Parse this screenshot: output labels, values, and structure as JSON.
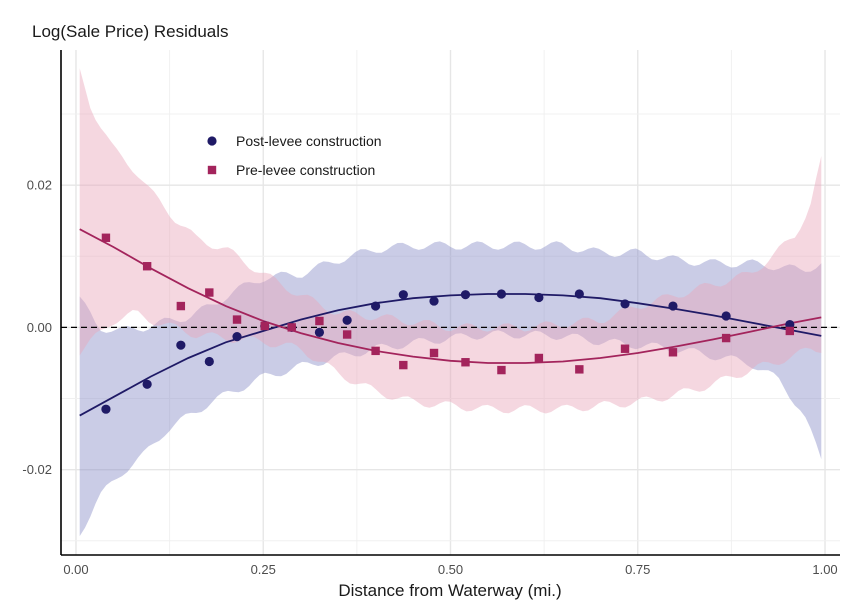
{
  "chart_data": {
    "type": "scatter",
    "ylabel": "Log(Sale Price) Residuals",
    "xlabel": "Distance from Waterway (mi.)",
    "xlim": [
      -0.02,
      1.02
    ],
    "ylim": [
      -0.032,
      0.039
    ],
    "x_ticks": [
      0.0,
      0.25,
      0.5,
      0.75,
      1.0
    ],
    "x_tick_labels": [
      "0.00",
      "0.25",
      "0.50",
      "0.75",
      "1.00"
    ],
    "y_ticks": [
      -0.02,
      0.0,
      0.02
    ],
    "y_tick_labels": [
      "-0.02",
      "0.00",
      "0.02"
    ],
    "reference_line": {
      "y": 0,
      "style": "dashed"
    },
    "grid": true,
    "legend": {
      "placement": "top-left"
    },
    "series": [
      {
        "name": "Post-levee construction",
        "marker": "circle",
        "color": "#1f1a66",
        "band_color": "#8a8ec8",
        "points": [
          [
            0.04,
            -0.0115
          ],
          [
            0.095,
            -0.008
          ],
          [
            0.14,
            -0.0025
          ],
          [
            0.178,
            -0.0048
          ],
          [
            0.215,
            -0.0013
          ],
          [
            0.252,
            0.0002
          ],
          [
            0.288,
            0.0
          ],
          [
            0.325,
            -0.0007
          ],
          [
            0.362,
            0.001
          ],
          [
            0.4,
            0.003
          ],
          [
            0.437,
            0.0046
          ],
          [
            0.478,
            0.0037
          ],
          [
            0.52,
            0.0046
          ],
          [
            0.568,
            0.0047
          ],
          [
            0.618,
            0.0042
          ],
          [
            0.672,
            0.0047
          ],
          [
            0.733,
            0.0033
          ],
          [
            0.797,
            0.003
          ],
          [
            0.868,
            0.0016
          ],
          [
            0.953,
            0.0004
          ]
        ],
        "fit": [
          [
            0.005,
            -0.0124
          ],
          [
            0.05,
            -0.0098
          ],
          [
            0.1,
            -0.0069
          ],
          [
            0.15,
            -0.0043
          ],
          [
            0.2,
            -0.0021
          ],
          [
            0.25,
            -0.0005
          ],
          [
            0.3,
            0.0011
          ],
          [
            0.35,
            0.0024
          ],
          [
            0.4,
            0.0034
          ],
          [
            0.45,
            0.0041
          ],
          [
            0.5,
            0.0045
          ],
          [
            0.55,
            0.0047
          ],
          [
            0.6,
            0.0047
          ],
          [
            0.65,
            0.0045
          ],
          [
            0.7,
            0.0041
          ],
          [
            0.75,
            0.0034
          ],
          [
            0.8,
            0.0026
          ],
          [
            0.85,
            0.0017
          ],
          [
            0.9,
            0.0007
          ],
          [
            0.95,
            -0.0003
          ],
          [
            0.995,
            -0.0012
          ]
        ],
        "band": [
          [
            0.005,
            -0.029,
            0.004
          ],
          [
            0.03,
            -0.024,
            0.0
          ],
          [
            0.06,
            -0.0205,
            -0.0005
          ],
          [
            0.09,
            -0.018,
            0.0
          ],
          [
            0.12,
            -0.0145,
            0.0008
          ],
          [
            0.15,
            -0.0125,
            0.0015
          ],
          [
            0.18,
            -0.0105,
            0.003
          ],
          [
            0.21,
            -0.009,
            0.005
          ],
          [
            0.25,
            -0.007,
            0.007
          ],
          [
            0.3,
            -0.0055,
            0.0075
          ],
          [
            0.35,
            -0.0042,
            0.0095
          ],
          [
            0.4,
            -0.003,
            0.011
          ],
          [
            0.45,
            -0.0022,
            0.0115
          ],
          [
            0.5,
            -0.0015,
            0.0115
          ],
          [
            0.55,
            -0.001,
            0.0115
          ],
          [
            0.6,
            -0.001,
            0.0115
          ],
          [
            0.65,
            -0.0012,
            0.0115
          ],
          [
            0.7,
            -0.002,
            0.0105
          ],
          [
            0.75,
            -0.0025,
            0.0105
          ],
          [
            0.8,
            -0.003,
            0.0095
          ],
          [
            0.85,
            -0.004,
            0.009
          ],
          [
            0.9,
            -0.005,
            0.009
          ],
          [
            0.94,
            -0.0075,
            0.0085
          ],
          [
            0.97,
            -0.012,
            0.008
          ],
          [
            0.995,
            -0.0185,
            0.009
          ]
        ]
      },
      {
        "name": "Pre-levee construction",
        "marker": "square",
        "color": "#a3245c",
        "band_color": "#e8a6ba",
        "points": [
          [
            0.04,
            0.0126
          ],
          [
            0.095,
            0.0086
          ],
          [
            0.14,
            0.003
          ],
          [
            0.178,
            0.0049
          ],
          [
            0.215,
            0.0011
          ],
          [
            0.252,
            0.0002
          ],
          [
            0.288,
            0.0
          ],
          [
            0.325,
            0.0009
          ],
          [
            0.362,
            -0.001
          ],
          [
            0.4,
            -0.0033
          ],
          [
            0.437,
            -0.0053
          ],
          [
            0.478,
            -0.0036
          ],
          [
            0.52,
            -0.0049
          ],
          [
            0.568,
            -0.006
          ],
          [
            0.618,
            -0.0043
          ],
          [
            0.672,
            -0.0059
          ],
          [
            0.733,
            -0.003
          ],
          [
            0.797,
            -0.0035
          ],
          [
            0.868,
            -0.0015
          ],
          [
            0.953,
            -0.0005
          ]
        ],
        "fit": [
          [
            0.005,
            0.0138
          ],
          [
            0.05,
            0.0113
          ],
          [
            0.1,
            0.0083
          ],
          [
            0.15,
            0.0055
          ],
          [
            0.2,
            0.003
          ],
          [
            0.25,
            0.0009
          ],
          [
            0.3,
            -0.0008
          ],
          [
            0.35,
            -0.0022
          ],
          [
            0.4,
            -0.0033
          ],
          [
            0.45,
            -0.0041
          ],
          [
            0.5,
            -0.0047
          ],
          [
            0.55,
            -0.005
          ],
          [
            0.6,
            -0.005
          ],
          [
            0.65,
            -0.0048
          ],
          [
            0.7,
            -0.0043
          ],
          [
            0.75,
            -0.0036
          ],
          [
            0.8,
            -0.0027
          ],
          [
            0.85,
            -0.0017
          ],
          [
            0.9,
            -0.0006
          ],
          [
            0.95,
            0.0005
          ],
          [
            0.995,
            0.0014
          ]
        ],
        "band": [
          [
            0.005,
            -0.0035,
            0.036
          ],
          [
            0.02,
            -0.002,
            0.031
          ],
          [
            0.05,
            0.001,
            0.025
          ],
          [
            0.08,
            0.002,
            0.022
          ],
          [
            0.1,
            0.001,
            0.019
          ],
          [
            0.13,
            0.0,
            0.0155
          ],
          [
            0.16,
            -0.001,
            0.0125
          ],
          [
            0.2,
            -0.0015,
            0.011
          ],
          [
            0.25,
            -0.002,
            0.0075
          ],
          [
            0.3,
            -0.003,
            0.0045
          ],
          [
            0.35,
            -0.0065,
            0.002
          ],
          [
            0.4,
            -0.009,
            0.0015
          ],
          [
            0.45,
            -0.0105,
            0.0008
          ],
          [
            0.5,
            -0.011,
            0.0
          ],
          [
            0.55,
            -0.0115,
            0.0
          ],
          [
            0.6,
            -0.0115,
            0.0
          ],
          [
            0.65,
            -0.0115,
            0.0005
          ],
          [
            0.7,
            -0.011,
            0.001
          ],
          [
            0.75,
            -0.0105,
            0.003
          ],
          [
            0.8,
            -0.0095,
            0.0045
          ],
          [
            0.85,
            -0.008,
            0.006
          ],
          [
            0.9,
            -0.006,
            0.0075
          ],
          [
            0.93,
            -0.005,
            0.01
          ],
          [
            0.96,
            -0.004,
            0.013
          ],
          [
            0.98,
            -0.003,
            0.017
          ],
          [
            0.995,
            -0.003,
            0.0235
          ]
        ]
      }
    ]
  }
}
